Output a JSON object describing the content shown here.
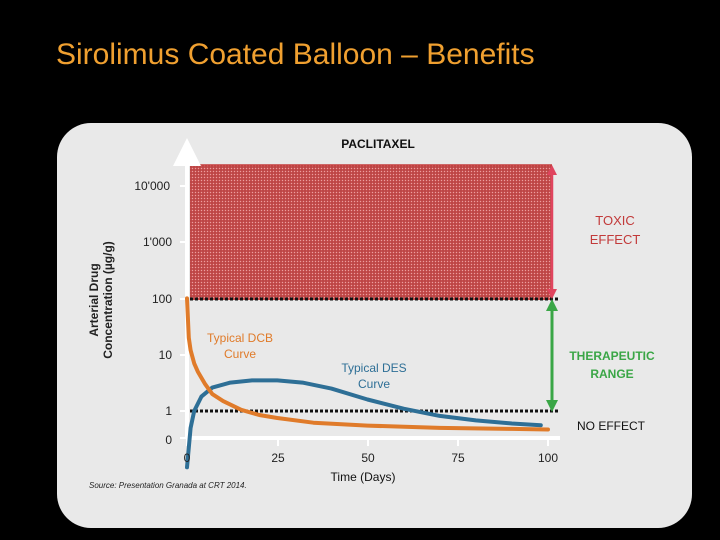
{
  "title": "Sirolimus Coated Balloon – Benefits",
  "chart_data": {
    "type": "line",
    "title": "PACLITAXEL",
    "xlabel": "Time (Days)",
    "ylabel_line1": "Arterial Drug",
    "ylabel_line2": "Concentration (µg/g)",
    "x_ticks": [
      "0",
      "25",
      "50",
      "75",
      "100"
    ],
    "y_ticks": [
      "0",
      "1",
      "10",
      "100",
      "1'000",
      "10'000"
    ],
    "xlim": [
      0,
      100
    ],
    "series": [
      {
        "name": "Typical DCB Curve",
        "label_line1": "Typical DCB",
        "label_line2": "Curve",
        "color": "#e07b2a",
        "points": [
          [
            0,
            100
          ],
          [
            0.5,
            20
          ],
          [
            1,
            12
          ],
          [
            2,
            7
          ],
          [
            3,
            5
          ],
          [
            5,
            3
          ],
          [
            7,
            2
          ],
          [
            10,
            1.5
          ],
          [
            15,
            1.05
          ],
          [
            20,
            0.85
          ],
          [
            25,
            0.75
          ],
          [
            35,
            0.62
          ],
          [
            50,
            0.55
          ],
          [
            70,
            0.5
          ],
          [
            90,
            0.48
          ],
          [
            100,
            0.47
          ]
        ]
      },
      {
        "name": "Typical DES Curve",
        "label_line1": "Typical DES",
        "label_line2": "Curve",
        "color": "#2e6f96",
        "points": [
          [
            0,
            0.1
          ],
          [
            1,
            0.5
          ],
          [
            2,
            1
          ],
          [
            4,
            1.8
          ],
          [
            7,
            2.6
          ],
          [
            12,
            3.2
          ],
          [
            18,
            3.5
          ],
          [
            25,
            3.5
          ],
          [
            32,
            3.2
          ],
          [
            40,
            2.5
          ],
          [
            50,
            1.6
          ],
          [
            60,
            1.1
          ],
          [
            70,
            0.82
          ],
          [
            80,
            0.68
          ],
          [
            90,
            0.6
          ],
          [
            98,
            0.56
          ]
        ]
      }
    ],
    "regions": {
      "toxic_line1": "TOXIC",
      "toxic_line2": "EFFECT",
      "therapeutic_line1": "THERAPEUTIC",
      "therapeutic_line2": "RANGE",
      "no_effect": "NO EFFECT"
    },
    "thresholds": {
      "toxic_min": 100,
      "therapeutic_min": 1
    },
    "colors": {
      "toxic_fill": "#c23a3a",
      "toxic_arrow": "#e0445e",
      "therapeutic_arrow": "#3aa646"
    },
    "source": "Source: Presentation Granada at CRT 2014."
  }
}
